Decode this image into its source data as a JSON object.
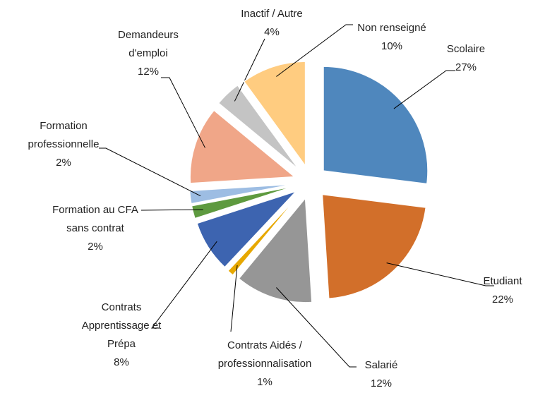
{
  "chart_data": {
    "type": "pie",
    "categories": [
      "Scolaire",
      "Etudiant",
      "Salarié",
      "Contrats Aidés / professionnalisation",
      "Contrats Apprentissage et Prépa",
      "Formation au CFA sans contrat",
      "Formation professionnelle",
      "Demandeurs d'emploi",
      "Inactif / Autre",
      "Non renseigné"
    ],
    "values": [
      27,
      22,
      12,
      1,
      8,
      2,
      2,
      12,
      4,
      10
    ],
    "value_labels": [
      "27%",
      "22%",
      "12%",
      "1%",
      "8%",
      "2%",
      "2%",
      "12%",
      "4%",
      "10%"
    ],
    "colors": [
      "#4f87bd",
      "#d26f2a",
      "#969696",
      "#e7a800",
      "#3d64b0",
      "#5e9a3f",
      "#9dbde3",
      "#f0a688",
      "#c4c4c4",
      "#ffcc80"
    ]
  }
}
